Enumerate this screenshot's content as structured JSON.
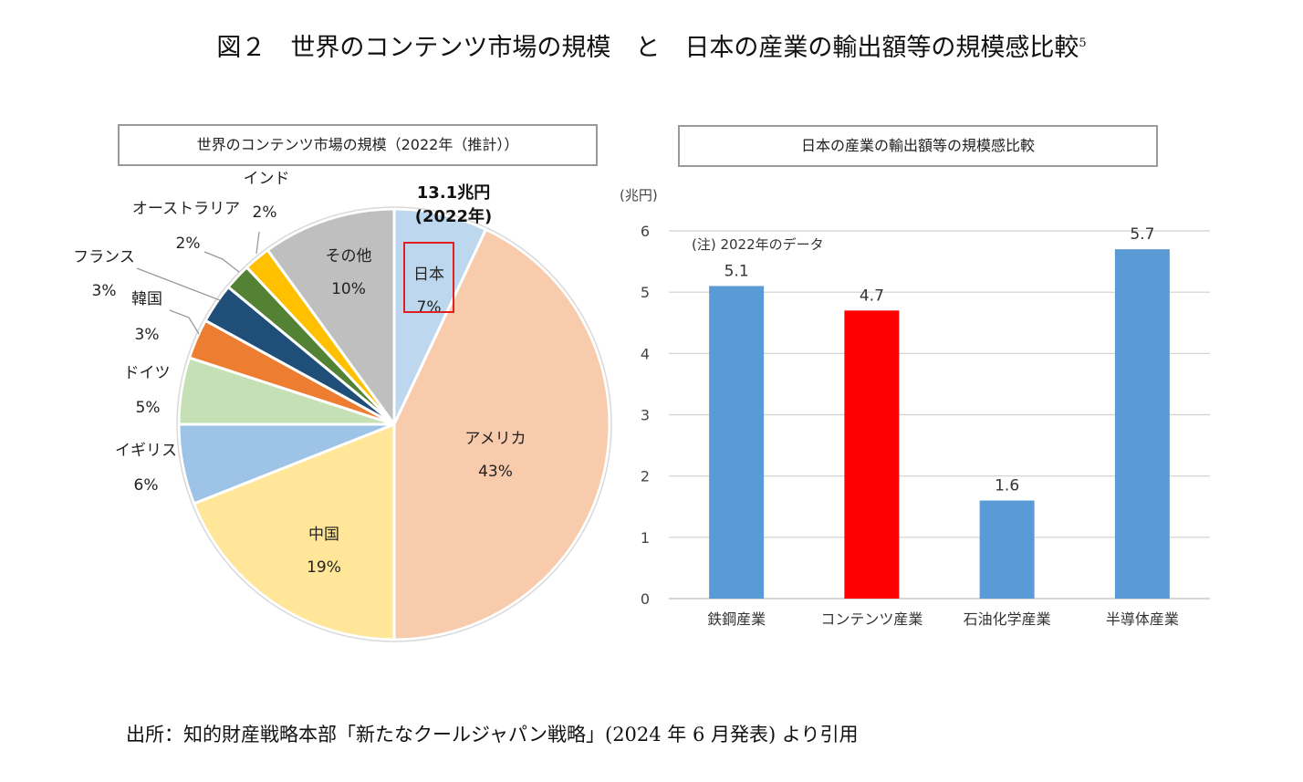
{
  "figure": {
    "title": "図２　世界のコンテンツ市場の規模　と　日本の産業の輸出額等の規模感比較",
    "title_footnote": "5",
    "source": "出所：知的財産戦略本部「新たなクールジャパン戦略」(2024 年 6 月発表) より引用"
  },
  "chart_data": [
    {
      "type": "pie",
      "title": "世界のコンテンツ市場の規模（2022年（推計））",
      "annotation": {
        "line1": "13.1兆円",
        "line2": "(2022年)"
      },
      "highlight": "日本",
      "slices": [
        {
          "name": "日本",
          "pct_label": "7%",
          "value": 7,
          "color": "#bdd7ee"
        },
        {
          "name": "アメリカ",
          "pct_label": "43%",
          "value": 43,
          "color": "#f8cbad"
        },
        {
          "name": "中国",
          "pct_label": "19%",
          "value": 19,
          "color": "#ffe699"
        },
        {
          "name": "イギリス",
          "pct_label": "6%",
          "value": 6,
          "color": "#9dc3e6"
        },
        {
          "name": "ドイツ",
          "pct_label": "5%",
          "value": 5,
          "color": "#c5e0b4"
        },
        {
          "name": "韓国",
          "pct_label": "3%",
          "value": 3,
          "color": "#ed7d31"
        },
        {
          "name": "フランス",
          "pct_label": "3%",
          "value": 3,
          "color": "#1f4e79"
        },
        {
          "name": "オーストラリア",
          "pct_label": "2%",
          "value": 2,
          "color": "#548235"
        },
        {
          "name": "インド",
          "pct_label": "2%",
          "value": 2,
          "color": "#ffc000"
        },
        {
          "name": "その他",
          "pct_label": "10%",
          "value": 10,
          "color": "#bfbfbf"
        }
      ]
    },
    {
      "type": "bar",
      "title": "日本の産業の輸出額等の規模感比較",
      "ylabel": "(兆円)",
      "note": "(注) 2022年のデータ",
      "ylim": [
        0,
        6
      ],
      "yticks": [
        "0",
        "1",
        "2",
        "3",
        "4",
        "5",
        "6"
      ],
      "grid": true,
      "categories": [
        "鉄鋼産業",
        "コンテンツ産業",
        "石油化学産業",
        "半導体産業"
      ],
      "values": [
        5.1,
        4.7,
        1.6,
        5.7
      ],
      "value_labels": [
        "5.1",
        "4.7",
        "1.6",
        "5.7"
      ],
      "colors": [
        "#5b9bd5",
        "#ff0000",
        "#5b9bd5",
        "#5b9bd5"
      ]
    }
  ]
}
